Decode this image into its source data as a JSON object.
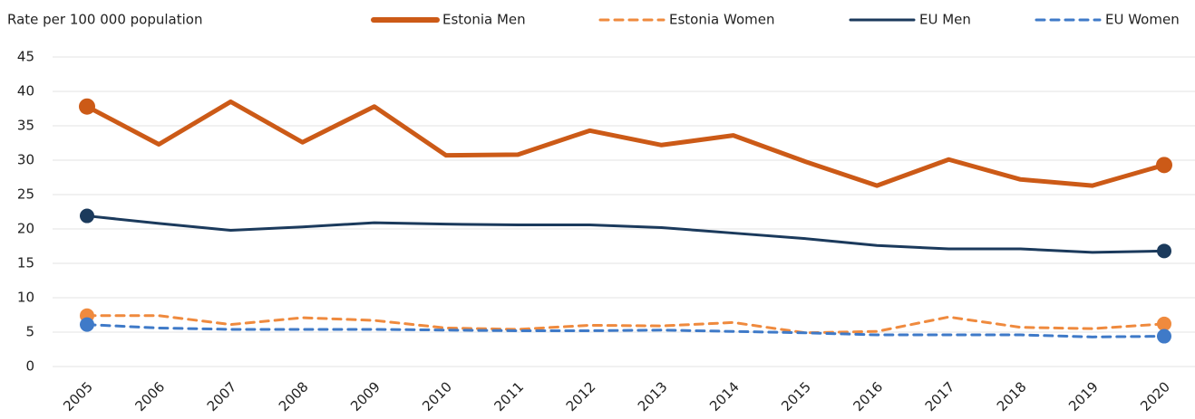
{
  "chart_data": {
    "type": "line",
    "ylabel": "Rate per 100 000 population",
    "categories": [
      "2005",
      "2006",
      "2007",
      "2008",
      "2009",
      "2010",
      "2011",
      "2012",
      "2013",
      "2014",
      "2015",
      "2016",
      "2017",
      "2018",
      "2019",
      "2020"
    ],
    "series": [
      {
        "name": "Estonia Men",
        "color": "#cc5a17",
        "dashed": false,
        "width": 5,
        "values": [
          37.8,
          32.3,
          38.5,
          32.6,
          37.8,
          30.7,
          30.8,
          34.3,
          32.2,
          33.6,
          29.8,
          26.3,
          30.1,
          27.2,
          26.3,
          29.3
        ]
      },
      {
        "name": "Estonia Women",
        "color": "#ef8a3e",
        "dashed": true,
        "width": 3,
        "values": [
          7.4,
          7.4,
          6.1,
          7.1,
          6.7,
          5.6,
          5.4,
          6.0,
          5.9,
          6.4,
          4.9,
          5.1,
          7.2,
          5.7,
          5.5,
          6.2
        ]
      },
      {
        "name": "EU Men",
        "color": "#1b3a5c",
        "dashed": false,
        "width": 3,
        "values": [
          21.9,
          20.8,
          19.8,
          20.3,
          20.9,
          20.7,
          20.6,
          20.6,
          20.2,
          19.4,
          18.6,
          17.6,
          17.1,
          17.1,
          16.6,
          16.8
        ]
      },
      {
        "name": "EU Women",
        "color": "#3f7ac8",
        "dashed": true,
        "width": 3,
        "values": [
          6.1,
          5.6,
          5.4,
          5.4,
          5.4,
          5.3,
          5.2,
          5.2,
          5.3,
          5.1,
          4.9,
          4.6,
          4.6,
          4.6,
          4.3,
          4.4
        ]
      }
    ],
    "end_markers": true,
    "ylim": [
      0,
      45
    ],
    "yticks": [
      0,
      5,
      10,
      15,
      20,
      25,
      30,
      35,
      40,
      45
    ],
    "grid": true,
    "legend": "top"
  }
}
